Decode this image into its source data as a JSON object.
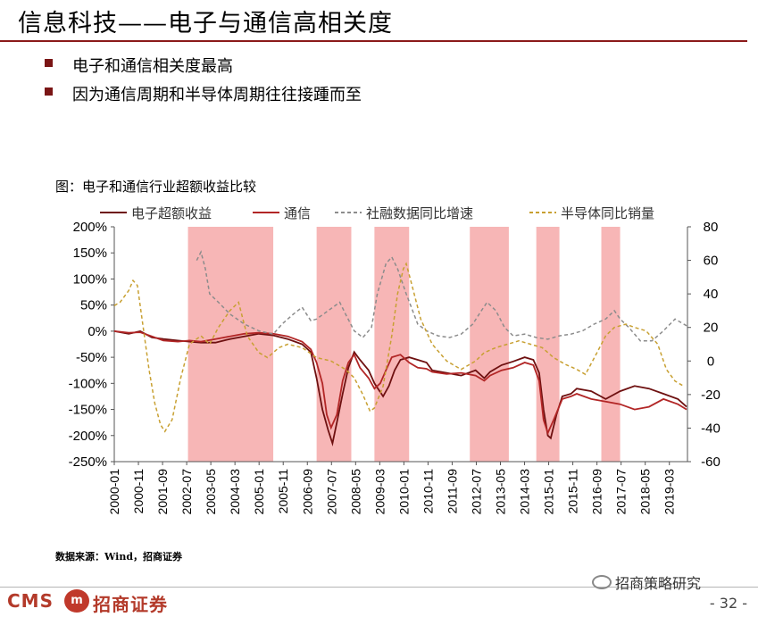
{
  "slide": {
    "title": "信息科技——电子与通信高相关度",
    "bullets": [
      "电子和通信相关度最高",
      "因为通信周期和半导体周期往往接踵而至"
    ]
  },
  "figure": {
    "caption": "图：电子和通信行业超额收益比较",
    "source": "数据来源：Wind，招商证券"
  },
  "footer": {
    "logo_text": "CMS",
    "logo_mark": "m",
    "company": "招商证券",
    "wechat": "招商策略研究",
    "page": "- 32 -"
  },
  "chart_data": {
    "type": "line",
    "left_axis": {
      "ticks": [
        "200%",
        "150%",
        "100%",
        "50%",
        "0%",
        "-50%",
        "-100%",
        "-150%",
        "-200%",
        "-250%"
      ],
      "range": [
        -250,
        200
      ],
      "unit": "%"
    },
    "right_axis": {
      "ticks": [
        "80",
        "60",
        "40",
        "20",
        "0",
        "-20",
        "-40",
        "-60"
      ],
      "range": [
        -60,
        80
      ]
    },
    "x_ticks": [
      "2000-01",
      "2000-11",
      "2001-09",
      "2002-07",
      "2003-05",
      "2004-03",
      "2005-01",
      "2005-11",
      "2006-09",
      "2007-07",
      "2008-05",
      "2009-03",
      "2010-01",
      "2010-11",
      "2011-09",
      "2012-07",
      "2013-05",
      "2014-03",
      "2015-01",
      "2015-11",
      "2016-09",
      "2017-07",
      "2018-05",
      "2019-03"
    ],
    "x_range": [
      2000.0,
      2019.83
    ],
    "shaded_periods": [
      [
        2002.55,
        2005.5
      ],
      [
        2007.0,
        2008.2
      ],
      [
        2009.0,
        2010.2
      ],
      [
        2012.3,
        2013.65
      ],
      [
        2014.6,
        2015.4
      ],
      [
        2016.85,
        2017.5
      ]
    ],
    "colors": {
      "shade": "#f7b6b6",
      "electronics": "#6e1010",
      "telecom": "#b22626",
      "tsf": "#8c8c8c",
      "semi": "#c8a032"
    },
    "series": [
      {
        "name": "电子超额收益",
        "axis": "left",
        "style": "solid",
        "color": "#6e1010",
        "points": [
          [
            2000.0,
            0
          ],
          [
            2000.5,
            -5
          ],
          [
            2000.9,
            0
          ],
          [
            2001.3,
            -12
          ],
          [
            2001.7,
            -15
          ],
          [
            2002.2,
            -18
          ],
          [
            2002.6,
            -20
          ],
          [
            2003.0,
            -22
          ],
          [
            2003.5,
            -22
          ],
          [
            2004.0,
            -15
          ],
          [
            2004.5,
            -10
          ],
          [
            2005.0,
            -5
          ],
          [
            2005.5,
            -8
          ],
          [
            2006.0,
            -15
          ],
          [
            2006.5,
            -25
          ],
          [
            2006.8,
            -40
          ],
          [
            2007.0,
            -90
          ],
          [
            2007.2,
            -150
          ],
          [
            2007.4,
            -190
          ],
          [
            2007.55,
            -215
          ],
          [
            2007.7,
            -175
          ],
          [
            2007.9,
            -120
          ],
          [
            2008.1,
            -70
          ],
          [
            2008.3,
            -40
          ],
          [
            2008.5,
            -55
          ],
          [
            2008.8,
            -75
          ],
          [
            2009.0,
            -100
          ],
          [
            2009.3,
            -125
          ],
          [
            2009.5,
            -105
          ],
          [
            2009.7,
            -75
          ],
          [
            2009.9,
            -55
          ],
          [
            2010.2,
            -50
          ],
          [
            2010.5,
            -55
          ],
          [
            2010.8,
            -60
          ],
          [
            2011.0,
            -75
          ],
          [
            2011.5,
            -80
          ],
          [
            2012.0,
            -85
          ],
          [
            2012.5,
            -75
          ],
          [
            2012.8,
            -90
          ],
          [
            2013.0,
            -78
          ],
          [
            2013.4,
            -65
          ],
          [
            2013.8,
            -58
          ],
          [
            2014.2,
            -50
          ],
          [
            2014.5,
            -55
          ],
          [
            2014.7,
            -80
          ],
          [
            2014.85,
            -150
          ],
          [
            2015.0,
            -200
          ],
          [
            2015.1,
            -205
          ],
          [
            2015.3,
            -160
          ],
          [
            2015.5,
            -125
          ],
          [
            2015.8,
            -120
          ],
          [
            2016.0,
            -110
          ],
          [
            2016.5,
            -115
          ],
          [
            2017.0,
            -130
          ],
          [
            2017.5,
            -115
          ],
          [
            2018.0,
            -105
          ],
          [
            2018.5,
            -110
          ],
          [
            2019.0,
            -120
          ],
          [
            2019.5,
            -130
          ],
          [
            2019.8,
            -145
          ]
        ]
      },
      {
        "name": "通信",
        "axis": "left",
        "style": "solid",
        "color": "#b22626",
        "points": [
          [
            2000.0,
            0
          ],
          [
            2000.5,
            -3
          ],
          [
            2000.9,
            -2
          ],
          [
            2001.3,
            -10
          ],
          [
            2001.7,
            -18
          ],
          [
            2002.2,
            -20
          ],
          [
            2002.6,
            -18
          ],
          [
            2003.0,
            -20
          ],
          [
            2003.5,
            -15
          ],
          [
            2004.0,
            -10
          ],
          [
            2004.5,
            -5
          ],
          [
            2005.0,
            -3
          ],
          [
            2005.5,
            -5
          ],
          [
            2006.0,
            -10
          ],
          [
            2006.5,
            -20
          ],
          [
            2006.8,
            -35
          ],
          [
            2007.0,
            -60
          ],
          [
            2007.2,
            -100
          ],
          [
            2007.35,
            -160
          ],
          [
            2007.5,
            -185
          ],
          [
            2007.7,
            -160
          ],
          [
            2007.9,
            -95
          ],
          [
            2008.1,
            -60
          ],
          [
            2008.3,
            -45
          ],
          [
            2008.5,
            -70
          ],
          [
            2008.8,
            -90
          ],
          [
            2009.0,
            -110
          ],
          [
            2009.2,
            -100
          ],
          [
            2009.4,
            -75
          ],
          [
            2009.6,
            -50
          ],
          [
            2009.9,
            -45
          ],
          [
            2010.2,
            -60
          ],
          [
            2010.5,
            -70
          ],
          [
            2010.8,
            -72
          ],
          [
            2011.0,
            -78
          ],
          [
            2011.5,
            -82
          ],
          [
            2012.0,
            -80
          ],
          [
            2012.5,
            -85
          ],
          [
            2012.8,
            -95
          ],
          [
            2013.0,
            -85
          ],
          [
            2013.4,
            -75
          ],
          [
            2013.8,
            -70
          ],
          [
            2014.2,
            -60
          ],
          [
            2014.5,
            -65
          ],
          [
            2014.7,
            -95
          ],
          [
            2014.85,
            -170
          ],
          [
            2015.0,
            -195
          ],
          [
            2015.2,
            -170
          ],
          [
            2015.5,
            -130
          ],
          [
            2015.8,
            -125
          ],
          [
            2016.0,
            -120
          ],
          [
            2016.5,
            -130
          ],
          [
            2017.0,
            -135
          ],
          [
            2017.5,
            -140
          ],
          [
            2018.0,
            -150
          ],
          [
            2018.5,
            -145
          ],
          [
            2019.0,
            -130
          ],
          [
            2019.5,
            -140
          ],
          [
            2019.8,
            -150
          ]
        ]
      },
      {
        "name": "社融数据同比增速",
        "axis": "right",
        "style": "dashed",
        "color": "#8c8c8c",
        "points": [
          [
            2002.85,
            60
          ],
          [
            2003.0,
            65
          ],
          [
            2003.15,
            55
          ],
          [
            2003.3,
            40
          ],
          [
            2003.6,
            35
          ],
          [
            2004.0,
            28
          ],
          [
            2004.5,
            22
          ],
          [
            2005.0,
            18
          ],
          [
            2005.5,
            16
          ],
          [
            2005.8,
            22
          ],
          [
            2006.2,
            28
          ],
          [
            2006.5,
            32
          ],
          [
            2006.8,
            24
          ],
          [
            2007.0,
            25
          ],
          [
            2007.4,
            30
          ],
          [
            2007.8,
            35
          ],
          [
            2008.0,
            28
          ],
          [
            2008.3,
            18
          ],
          [
            2008.6,
            14
          ],
          [
            2008.9,
            20
          ],
          [
            2009.1,
            40
          ],
          [
            2009.4,
            58
          ],
          [
            2009.6,
            62
          ],
          [
            2009.8,
            55
          ],
          [
            2010.1,
            40
          ],
          [
            2010.5,
            22
          ],
          [
            2010.8,
            18
          ],
          [
            2011.2,
            15
          ],
          [
            2011.6,
            14
          ],
          [
            2012.0,
            16
          ],
          [
            2012.4,
            22
          ],
          [
            2012.7,
            30
          ],
          [
            2012.9,
            35
          ],
          [
            2013.2,
            30
          ],
          [
            2013.5,
            20
          ],
          [
            2013.8,
            15
          ],
          [
            2014.2,
            16
          ],
          [
            2014.6,
            14
          ],
          [
            2015.0,
            13
          ],
          [
            2015.4,
            15
          ],
          [
            2015.8,
            16
          ],
          [
            2016.2,
            18
          ],
          [
            2016.6,
            22
          ],
          [
            2017.0,
            25
          ],
          [
            2017.3,
            30
          ],
          [
            2017.5,
            25
          ],
          [
            2017.8,
            20
          ],
          [
            2018.2,
            12
          ],
          [
            2018.6,
            12
          ],
          [
            2019.0,
            18
          ],
          [
            2019.4,
            25
          ],
          [
            2019.8,
            21
          ]
        ]
      },
      {
        "name": "半导体同比销量",
        "axis": "right",
        "style": "dashed",
        "color": "#c8a032",
        "points": [
          [
            2000.0,
            33
          ],
          [
            2000.2,
            35
          ],
          [
            2000.5,
            42
          ],
          [
            2000.65,
            48
          ],
          [
            2000.8,
            45
          ],
          [
            2001.0,
            20
          ],
          [
            2001.2,
            -5
          ],
          [
            2001.4,
            -25
          ],
          [
            2001.6,
            -38
          ],
          [
            2001.75,
            -42
          ],
          [
            2002.0,
            -35
          ],
          [
            2002.3,
            -10
          ],
          [
            2002.6,
            10
          ],
          [
            2003.0,
            15
          ],
          [
            2003.3,
            10
          ],
          [
            2003.6,
            20
          ],
          [
            2004.0,
            30
          ],
          [
            2004.3,
            35
          ],
          [
            2004.6,
            15
          ],
          [
            2005.0,
            5
          ],
          [
            2005.3,
            2
          ],
          [
            2005.7,
            8
          ],
          [
            2006.0,
            10
          ],
          [
            2006.5,
            8
          ],
          [
            2007.0,
            2
          ],
          [
            2007.5,
            0
          ],
          [
            2008.0,
            -5
          ],
          [
            2008.3,
            -10
          ],
          [
            2008.6,
            -20
          ],
          [
            2008.85,
            -30
          ],
          [
            2009.0,
            -28
          ],
          [
            2009.3,
            -15
          ],
          [
            2009.6,
            15
          ],
          [
            2009.8,
            40
          ],
          [
            2010.0,
            55
          ],
          [
            2010.1,
            58
          ],
          [
            2010.3,
            45
          ],
          [
            2010.6,
            25
          ],
          [
            2011.0,
            10
          ],
          [
            2011.5,
            0
          ],
          [
            2012.0,
            -5
          ],
          [
            2012.5,
            0
          ],
          [
            2012.8,
            5
          ],
          [
            2013.2,
            8
          ],
          [
            2013.6,
            10
          ],
          [
            2014.0,
            12
          ],
          [
            2014.4,
            10
          ],
          [
            2014.8,
            8
          ],
          [
            2015.2,
            2
          ],
          [
            2015.6,
            -2
          ],
          [
            2016.0,
            -5
          ],
          [
            2016.3,
            -8
          ],
          [
            2016.7,
            5
          ],
          [
            2017.0,
            15
          ],
          [
            2017.3,
            20
          ],
          [
            2017.7,
            22
          ],
          [
            2018.0,
            20
          ],
          [
            2018.4,
            18
          ],
          [
            2018.8,
            10
          ],
          [
            2019.1,
            -5
          ],
          [
            2019.4,
            -12
          ],
          [
            2019.7,
            -15
          ]
        ]
      }
    ]
  }
}
